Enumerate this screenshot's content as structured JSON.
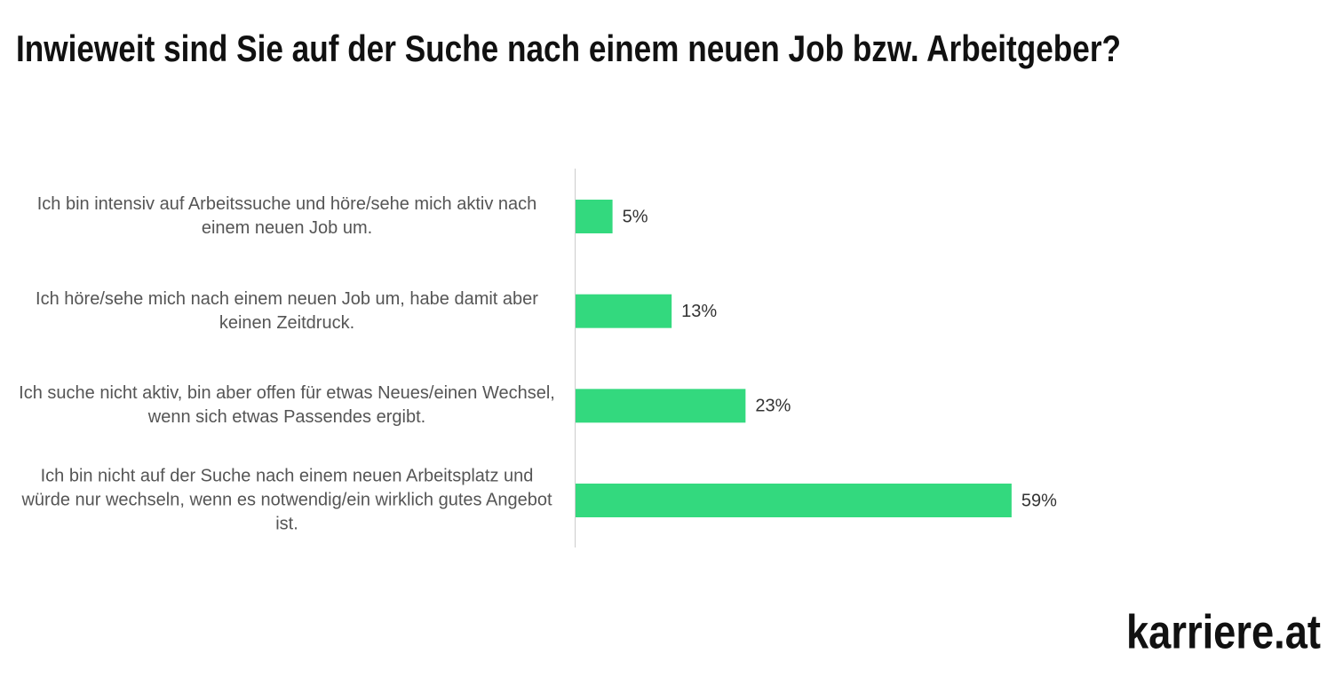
{
  "chart_data": {
    "type": "hbar",
    "title": "Inwieweit sind Sie auf der Suche nach einem neuen Job bzw. Arbeitgeber?",
    "categories": [
      "Ich bin intensiv auf Arbeitssuche und höre/sehe mich aktiv nach einem neuen Job um.",
      "Ich höre/sehe mich nach einem neuen Job um, habe damit aber keinen Zeitdruck.",
      "Ich suche nicht aktiv, bin aber offen für etwas Neues/einen Wechsel, wenn sich etwas Passendes ergibt.",
      "Ich bin nicht auf der Suche nach einem neuen Arbeitsplatz und würde nur wechseln, wenn es notwendig/ein wirklich gutes Angebot ist."
    ],
    "values": [
      5,
      13,
      23,
      59
    ],
    "value_labels": [
      "5%",
      "13%",
      "23%",
      "59%"
    ],
    "color": "#33d97e"
  },
  "logo": "karriere.at"
}
